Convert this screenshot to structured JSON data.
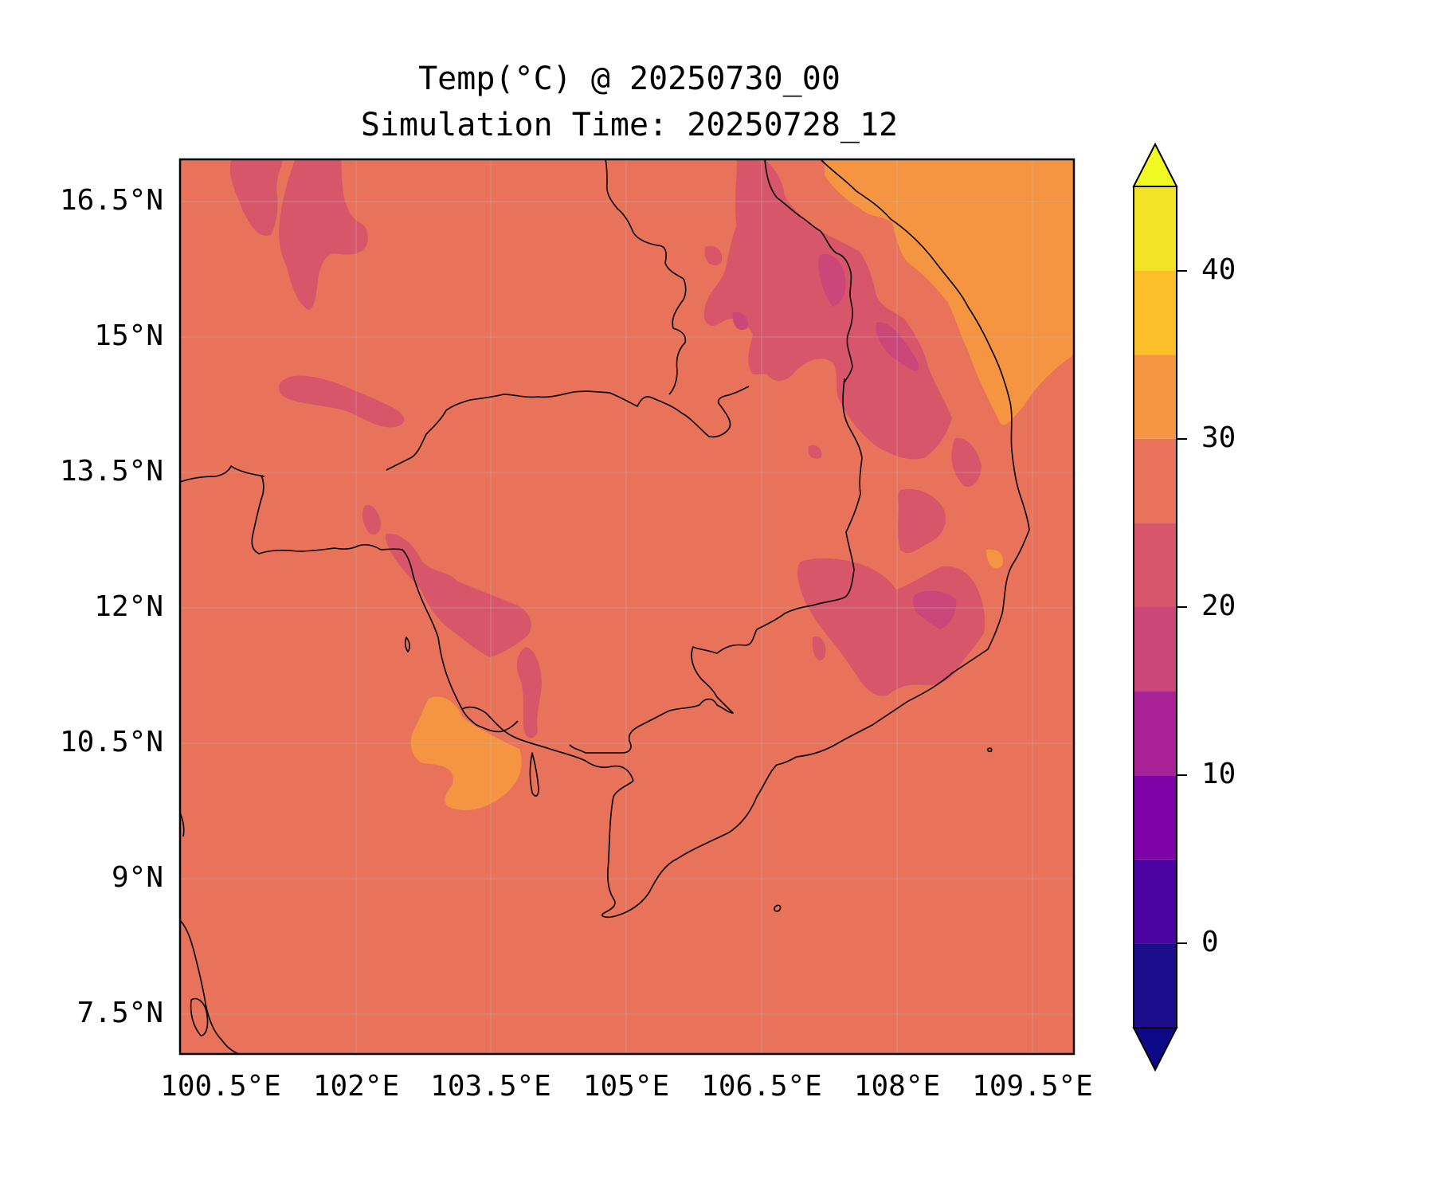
{
  "map": {
    "title_line1": "Temp(°C) @ 20250730_00",
    "title_line2": "Simulation Time: 20250728_12",
    "region": "Indochina (Cambodia, southern Laos, southern Vietnam, Gulf of Thailand)",
    "lat_ticks": [
      "16.5°N",
      "15°N",
      "13.5°N",
      "12°N",
      "10.5°N",
      "9°N",
      "7.5°N"
    ],
    "lon_ticks": [
      "100.5°E",
      "102°E",
      "103.5°E",
      "105°E",
      "106.5°E",
      "108°E",
      "109.5°E"
    ],
    "colorbar": {
      "tick_labels": [
        "40",
        "30",
        "20",
        "10",
        "0"
      ],
      "extend": "both",
      "levels": [
        -5,
        0,
        5,
        10,
        15,
        20,
        25,
        30,
        35,
        40,
        45
      ],
      "colors": [
        "#1b0d8c",
        "#4b03a1",
        "#7d03a8",
        "#a82296",
        "#cb4679",
        "#d8566a",
        "#e8735a",
        "#f69541",
        "#fdbf29",
        "#f2e326"
      ],
      "under_color": "#0d0887",
      "over_color": "#f0f921"
    },
    "background_color": "#e8735a",
    "features": [
      "coastlines",
      "country borders",
      "gridlines"
    ]
  }
}
